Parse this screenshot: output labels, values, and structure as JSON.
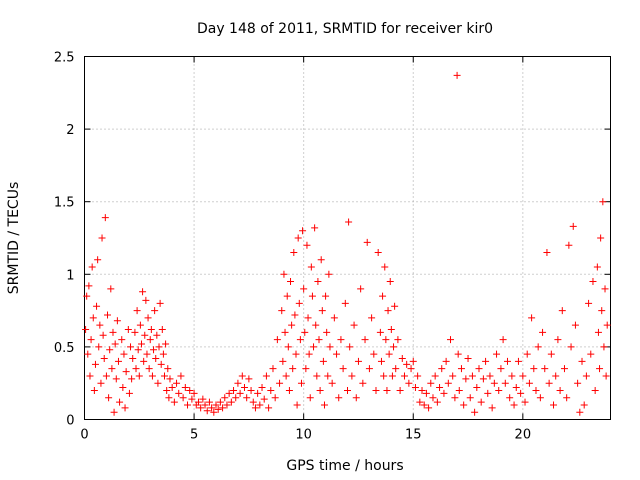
{
  "chart_data": {
    "type": "scatter",
    "title": "Day 148 of 2011, SRMTID for receiver kir0",
    "xlabel": "GPS time / hours",
    "ylabel": "SRMTID / TECUs",
    "xlim": [
      0,
      24
    ],
    "ylim": [
      0,
      2.5
    ],
    "xticks": [
      0,
      5,
      10,
      15,
      20
    ],
    "yticks": [
      0,
      0.5,
      1,
      1.5,
      2,
      2.5
    ],
    "xtick_labels": [
      "0",
      "5",
      "10",
      "15",
      "20"
    ],
    "ytick_labels": [
      "0",
      "0.5",
      "1",
      "1.5",
      "2",
      "2.5"
    ],
    "grid": true,
    "marker": "+",
    "color": "#ff0000",
    "series": [
      {
        "name": "SRMTID",
        "points": [
          [
            0.05,
            0.62
          ],
          [
            0.1,
            0.85
          ],
          [
            0.15,
            0.45
          ],
          [
            0.2,
            0.92
          ],
          [
            0.25,
            0.3
          ],
          [
            0.3,
            0.55
          ],
          [
            0.35,
            1.05
          ],
          [
            0.4,
            0.7
          ],
          [
            0.45,
            0.2
          ],
          [
            0.5,
            0.38
          ],
          [
            0.55,
            0.78
          ],
          [
            0.6,
            1.1
          ],
          [
            0.65,
            0.5
          ],
          [
            0.7,
            0.65
          ],
          [
            0.75,
            0.25
          ],
          [
            0.8,
            1.25
          ],
          [
            0.85,
            0.58
          ],
          [
            0.9,
            0.42
          ],
          [
            0.95,
            1.39
          ],
          [
            1.0,
            0.3
          ],
          [
            1.05,
            0.72
          ],
          [
            1.1,
            0.15
          ],
          [
            1.15,
            0.48
          ],
          [
            1.2,
            0.9
          ],
          [
            1.25,
            0.35
          ],
          [
            1.3,
            0.6
          ],
          [
            1.35,
            0.05
          ],
          [
            1.4,
            0.52
          ],
          [
            1.45,
            0.28
          ],
          [
            1.5,
            0.68
          ],
          [
            1.55,
            0.4
          ],
          [
            1.6,
            0.12
          ],
          [
            1.7,
            0.55
          ],
          [
            1.75,
            0.22
          ],
          [
            1.8,
            0.45
          ],
          [
            1.85,
            0.08
          ],
          [
            1.9,
            0.33
          ],
          [
            2.0,
            0.62
          ],
          [
            2.05,
            0.18
          ],
          [
            2.1,
            0.5
          ],
          [
            2.15,
            0.28
          ],
          [
            2.2,
            0.42
          ],
          [
            2.3,
            0.6
          ],
          [
            2.35,
            0.35
          ],
          [
            2.4,
            0.75
          ],
          [
            2.45,
            0.48
          ],
          [
            2.5,
            0.3
          ],
          [
            2.55,
            0.65
          ],
          [
            2.6,
            0.52
          ],
          [
            2.65,
            0.88
          ],
          [
            2.7,
            0.4
          ],
          [
            2.75,
            0.58
          ],
          [
            2.8,
            0.82
          ],
          [
            2.85,
            0.45
          ],
          [
            2.9,
            0.7
          ],
          [
            2.95,
            0.35
          ],
          [
            3.0,
            0.55
          ],
          [
            3.05,
            0.62
          ],
          [
            3.1,
            0.3
          ],
          [
            3.15,
            0.48
          ],
          [
            3.2,
            0.75
          ],
          [
            3.25,
            0.42
          ],
          [
            3.3,
            0.58
          ],
          [
            3.35,
            0.25
          ],
          [
            3.4,
            0.5
          ],
          [
            3.45,
            0.8
          ],
          [
            3.5,
            0.38
          ],
          [
            3.55,
            0.62
          ],
          [
            3.6,
            0.45
          ],
          [
            3.65,
            0.3
          ],
          [
            3.7,
            0.52
          ],
          [
            3.75,
            0.2
          ],
          [
            3.8,
            0.35
          ],
          [
            3.85,
            0.15
          ],
          [
            3.9,
            0.28
          ],
          [
            4.0,
            0.22
          ],
          [
            4.1,
            0.12
          ],
          [
            4.2,
            0.25
          ],
          [
            4.3,
            0.18
          ],
          [
            4.4,
            0.3
          ],
          [
            4.5,
            0.15
          ],
          [
            4.6,
            0.22
          ],
          [
            4.7,
            0.1
          ],
          [
            4.8,
            0.2
          ],
          [
            4.9,
            0.14
          ],
          [
            5.0,
            0.18
          ],
          [
            5.1,
            0.1
          ],
          [
            5.2,
            0.12
          ],
          [
            5.3,
            0.08
          ],
          [
            5.4,
            0.14
          ],
          [
            5.5,
            0.1
          ],
          [
            5.6,
            0.06
          ],
          [
            5.7,
            0.12
          ],
          [
            5.8,
            0.08
          ],
          [
            5.9,
            0.05
          ],
          [
            6.0,
            0.1
          ],
          [
            6.1,
            0.07
          ],
          [
            6.2,
            0.12
          ],
          [
            6.3,
            0.08
          ],
          [
            6.4,
            0.15
          ],
          [
            6.5,
            0.1
          ],
          [
            6.6,
            0.18
          ],
          [
            6.7,
            0.12
          ],
          [
            6.8,
            0.2
          ],
          [
            6.9,
            0.15
          ],
          [
            7.0,
            0.25
          ],
          [
            7.1,
            0.18
          ],
          [
            7.2,
            0.3
          ],
          [
            7.3,
            0.22
          ],
          [
            7.4,
            0.15
          ],
          [
            7.5,
            0.28
          ],
          [
            7.6,
            0.2
          ],
          [
            7.7,
            0.12
          ],
          [
            7.8,
            0.08
          ],
          [
            7.9,
            0.18
          ],
          [
            8.0,
            0.1
          ],
          [
            8.1,
            0.22
          ],
          [
            8.2,
            0.14
          ],
          [
            8.3,
            0.3
          ],
          [
            8.4,
            0.08
          ],
          [
            8.5,
            0.2
          ],
          [
            8.6,
            0.35
          ],
          [
            8.7,
            0.15
          ],
          [
            8.8,
            0.55
          ],
          [
            8.9,
            0.25
          ],
          [
            9.0,
            0.75
          ],
          [
            9.05,
            0.4
          ],
          [
            9.1,
            1.0
          ],
          [
            9.15,
            0.6
          ],
          [
            9.2,
            0.3
          ],
          [
            9.25,
            0.85
          ],
          [
            9.3,
            0.5
          ],
          [
            9.35,
            0.2
          ],
          [
            9.4,
            0.95
          ],
          [
            9.45,
            0.65
          ],
          [
            9.5,
            0.35
          ],
          [
            9.55,
            1.15
          ],
          [
            9.6,
            0.72
          ],
          [
            9.65,
            0.45
          ],
          [
            9.7,
            0.1
          ],
          [
            9.75,
            1.25
          ],
          [
            9.8,
            0.8
          ],
          [
            9.85,
            0.55
          ],
          [
            9.9,
            0.25
          ],
          [
            9.95,
            1.3
          ],
          [
            10.0,
            0.9
          ],
          [
            10.05,
            0.6
          ],
          [
            10.1,
            0.35
          ],
          [
            10.15,
            1.2
          ],
          [
            10.2,
            0.7
          ],
          [
            10.25,
            0.45
          ],
          [
            10.3,
            0.15
          ],
          [
            10.35,
            1.05
          ],
          [
            10.4,
            0.85
          ],
          [
            10.45,
            0.5
          ],
          [
            10.5,
            1.32
          ],
          [
            10.55,
            0.65
          ],
          [
            10.6,
            0.3
          ],
          [
            10.65,
            0.95
          ],
          [
            10.7,
            0.55
          ],
          [
            10.75,
            0.2
          ],
          [
            10.8,
            1.1
          ],
          [
            10.85,
            0.75
          ],
          [
            10.9,
            0.4
          ],
          [
            10.95,
            0.1
          ],
          [
            11.0,
            0.85
          ],
          [
            11.05,
            0.6
          ],
          [
            11.1,
            0.3
          ],
          [
            11.15,
            1.0
          ],
          [
            11.2,
            0.5
          ],
          [
            11.3,
            0.25
          ],
          [
            11.4,
            0.7
          ],
          [
            11.5,
            0.45
          ],
          [
            11.6,
            0.15
          ],
          [
            11.7,
            0.55
          ],
          [
            11.8,
            0.35
          ],
          [
            11.9,
            0.8
          ],
          [
            12.0,
            0.2
          ],
          [
            12.05,
            1.36
          ],
          [
            12.1,
            0.5
          ],
          [
            12.2,
            0.3
          ],
          [
            12.3,
            0.65
          ],
          [
            12.4,
            0.15
          ],
          [
            12.5,
            0.4
          ],
          [
            12.6,
            0.9
          ],
          [
            12.7,
            0.25
          ],
          [
            12.8,
            0.55
          ],
          [
            12.9,
            1.22
          ],
          [
            13.0,
            0.35
          ],
          [
            13.1,
            0.7
          ],
          [
            13.2,
            0.45
          ],
          [
            13.3,
            0.2
          ],
          [
            13.4,
            1.15
          ],
          [
            13.5,
            0.6
          ],
          [
            13.55,
            0.4
          ],
          [
            13.6,
            0.85
          ],
          [
            13.65,
            0.3
          ],
          [
            13.7,
            1.05
          ],
          [
            13.75,
            0.55
          ],
          [
            13.8,
            0.2
          ],
          [
            13.85,
            0.75
          ],
          [
            13.9,
            0.45
          ],
          [
            13.95,
            0.95
          ],
          [
            14.0,
            0.62
          ],
          [
            14.05,
            0.3
          ],
          [
            14.1,
            0.5
          ],
          [
            14.15,
            0.78
          ],
          [
            14.2,
            0.35
          ],
          [
            14.3,
            0.55
          ],
          [
            14.4,
            0.2
          ],
          [
            14.5,
            0.42
          ],
          [
            14.6,
            0.3
          ],
          [
            14.7,
            0.38
          ],
          [
            14.8,
            0.25
          ],
          [
            14.9,
            0.35
          ],
          [
            15.0,
            0.4
          ],
          [
            15.1,
            0.22
          ],
          [
            15.2,
            0.3
          ],
          [
            15.3,
            0.12
          ],
          [
            15.4,
            0.2
          ],
          [
            15.5,
            0.1
          ],
          [
            15.6,
            0.18
          ],
          [
            15.7,
            0.08
          ],
          [
            15.8,
            0.25
          ],
          [
            15.9,
            0.15
          ],
          [
            16.0,
            0.3
          ],
          [
            16.1,
            0.12
          ],
          [
            16.2,
            0.22
          ],
          [
            16.3,
            0.35
          ],
          [
            16.4,
            0.18
          ],
          [
            16.5,
            0.4
          ],
          [
            16.6,
            0.25
          ],
          [
            16.7,
            0.55
          ],
          [
            16.8,
            0.3
          ],
          [
            16.9,
            0.15
          ],
          [
            17.0,
            2.37
          ],
          [
            17.05,
            0.45
          ],
          [
            17.1,
            0.2
          ],
          [
            17.2,
            0.35
          ],
          [
            17.3,
            0.1
          ],
          [
            17.4,
            0.28
          ],
          [
            17.5,
            0.42
          ],
          [
            17.6,
            0.15
          ],
          [
            17.7,
            0.3
          ],
          [
            17.8,
            0.05
          ],
          [
            17.9,
            0.22
          ],
          [
            18.0,
            0.35
          ],
          [
            18.1,
            0.12
          ],
          [
            18.2,
            0.28
          ],
          [
            18.3,
            0.4
          ],
          [
            18.4,
            0.18
          ],
          [
            18.5,
            0.3
          ],
          [
            18.6,
            0.08
          ],
          [
            18.7,
            0.25
          ],
          [
            18.8,
            0.45
          ],
          [
            18.9,
            0.2
          ],
          [
            19.0,
            0.35
          ],
          [
            19.1,
            0.55
          ],
          [
            19.2,
            0.25
          ],
          [
            19.3,
            0.4
          ],
          [
            19.4,
            0.15
          ],
          [
            19.5,
            0.3
          ],
          [
            19.6,
            0.1
          ],
          [
            19.7,
            0.22
          ],
          [
            19.8,
            0.4
          ],
          [
            19.9,
            0.18
          ],
          [
            20.0,
            0.3
          ],
          [
            20.1,
            0.12
          ],
          [
            20.2,
            0.45
          ],
          [
            20.3,
            0.25
          ],
          [
            20.4,
            0.7
          ],
          [
            20.5,
            0.35
          ],
          [
            20.6,
            0.2
          ],
          [
            20.7,
            0.5
          ],
          [
            20.8,
            0.15
          ],
          [
            20.9,
            0.6
          ],
          [
            21.0,
            0.35
          ],
          [
            21.1,
            1.15
          ],
          [
            21.2,
            0.25
          ],
          [
            21.3,
            0.45
          ],
          [
            21.4,
            0.1
          ],
          [
            21.5,
            0.3
          ],
          [
            21.6,
            0.55
          ],
          [
            21.7,
            0.2
          ],
          [
            21.8,
            0.75
          ],
          [
            21.9,
            0.35
          ],
          [
            22.0,
            0.15
          ],
          [
            22.1,
            1.2
          ],
          [
            22.2,
            0.5
          ],
          [
            22.3,
            1.33
          ],
          [
            22.4,
            0.65
          ],
          [
            22.5,
            0.25
          ],
          [
            22.6,
            0.05
          ],
          [
            22.7,
            0.4
          ],
          [
            22.8,
            0.1
          ],
          [
            22.9,
            0.3
          ],
          [
            23.0,
            0.8
          ],
          [
            23.1,
            0.45
          ],
          [
            23.2,
            0.95
          ],
          [
            23.3,
            0.2
          ],
          [
            23.4,
            1.05
          ],
          [
            23.45,
            0.6
          ],
          [
            23.5,
            0.35
          ],
          [
            23.55,
            1.25
          ],
          [
            23.6,
            0.75
          ],
          [
            23.65,
            1.5
          ],
          [
            23.7,
            0.5
          ],
          [
            23.75,
            0.9
          ],
          [
            23.8,
            0.3
          ],
          [
            23.85,
            0.65
          ]
        ]
      }
    ]
  }
}
